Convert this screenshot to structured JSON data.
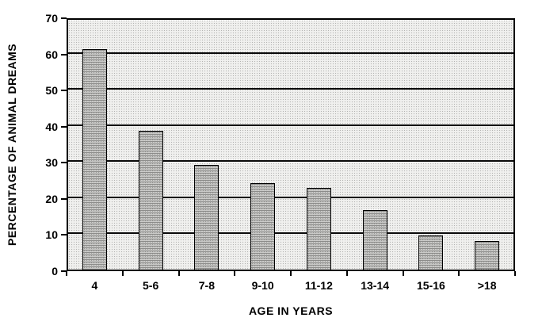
{
  "chart_data": {
    "type": "bar",
    "title": "",
    "categories": [
      "4",
      "5-6",
      "7-8",
      "9-10",
      "11-12",
      "13-14",
      "15-16",
      ">18"
    ],
    "values": [
      61,
      38.5,
      29,
      24,
      22.5,
      16.5,
      9.5,
      8
    ],
    "xlabel": "AGE IN YEARS",
    "ylabel": "PERCENTAGE OF ANIMAL DREAMS",
    "ylim": [
      0,
      70
    ],
    "yticks": [
      0,
      10,
      20,
      30,
      40,
      50,
      60,
      70
    ],
    "grid": true,
    "legend": false,
    "style": {
      "plot_background": "#f0f0ee",
      "plot_pattern_dot": "#b4b4b2",
      "bar_fill_base": "#c9c9c7",
      "bar_fill_stripe": "#8d8d8b",
      "bar_border": "#000000",
      "gridline_color": "#0a0a0a",
      "axis_color": "#000000",
      "text_color": "#000000",
      "page_background": "#ffffff"
    }
  }
}
